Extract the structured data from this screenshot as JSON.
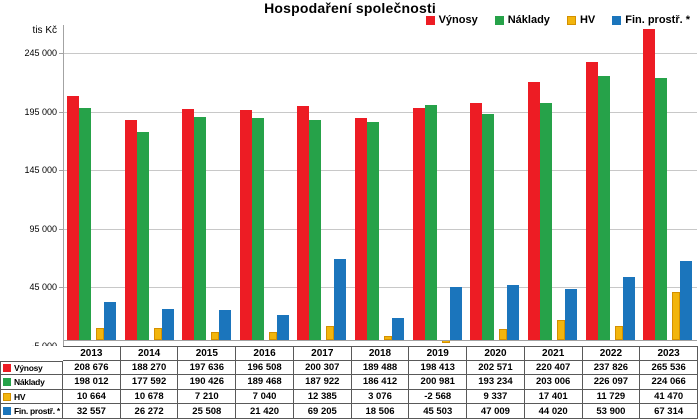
{
  "title": "Hospodaření společnosti",
  "y_axis": {
    "label": "tis Kč"
  },
  "colors": {
    "vynosy": "#ED1C24",
    "naklady": "#26A249",
    "hv_fill": "#F2B50D",
    "hv_border": "#D49000",
    "fin": "#1B75BC",
    "gridline": "#C8C8C8",
    "axis": "#A3A3A3",
    "table_border": "#595959"
  },
  "chart_data": {
    "type": "bar",
    "title": "Hospodaření společnosti",
    "ylabel": "tis Kč",
    "ylim": [
      -5000,
      269000
    ],
    "grid": true,
    "legend_position": "top-right",
    "y_ticks": [
      {
        "value": 245000,
        "label": "245 000"
      },
      {
        "value": 195000,
        "label": "195 000"
      },
      {
        "value": 145000,
        "label": "145 000"
      },
      {
        "value": 95000,
        "label": "95 000"
      },
      {
        "value": 45000,
        "label": "45 000"
      },
      {
        "value": -5000,
        "label": "-5 000"
      }
    ],
    "categories": [
      "2013",
      "2014",
      "2015",
      "2016",
      "2017",
      "2018",
      "2019",
      "2020",
      "2021",
      "2022",
      "2023"
    ],
    "series": [
      {
        "name": "Výnosy",
        "color": "#ED1C24",
        "border": null,
        "values": [
          208676,
          188270,
          197636,
          196508,
          200307,
          189488,
          198413,
          202571,
          220407,
          237826,
          265536
        ]
      },
      {
        "name": "Náklady",
        "color": "#26A249",
        "border": null,
        "values": [
          198012,
          177592,
          190426,
          189468,
          187922,
          186412,
          200981,
          193234,
          203006,
          226097,
          224066
        ]
      },
      {
        "name": "HV",
        "color": "#F2B50D",
        "border": "#D49000",
        "values": [
          10664,
          10678,
          7210,
          7040,
          12385,
          3076,
          -2568,
          9337,
          17401,
          11729,
          41470
        ]
      },
      {
        "name": "Fin. prostř. *",
        "color": "#1B75BC",
        "border": null,
        "values": [
          32557,
          26272,
          25508,
          21420,
          69205,
          18506,
          45503,
          47009,
          44020,
          53900,
          67314
        ]
      }
    ]
  },
  "table": {
    "header_years": [
      "2013",
      "2014",
      "2015",
      "2016",
      "2017",
      "2018",
      "2019",
      "2020",
      "2021",
      "2022",
      "2023"
    ],
    "rows": [
      {
        "label": "Výnosy",
        "marker_color": "#ED1C24",
        "marker_border": null,
        "values": [
          "208 676",
          "188 270",
          "197 636",
          "196 508",
          "200 307",
          "189 488",
          "198 413",
          "202 571",
          "220 407",
          "237 826",
          "265 536"
        ]
      },
      {
        "label": "Náklady",
        "marker_color": "#26A249",
        "marker_border": null,
        "values": [
          "198 012",
          "177 592",
          "190 426",
          "189 468",
          "187 922",
          "186 412",
          "200 981",
          "193 234",
          "203 006",
          "226 097",
          "224 066"
        ]
      },
      {
        "label": "HV",
        "marker_color": "#F2B50D",
        "marker_border": "#D49000",
        "values": [
          "10 664",
          "10 678",
          "7 210",
          "7 040",
          "12 385",
          "3 076",
          "-2 568",
          "9 337",
          "17 401",
          "11 729",
          "41 470"
        ]
      },
      {
        "label": "Fin. prostř. *",
        "marker_color": "#1B75BC",
        "marker_border": null,
        "values": [
          "32 557",
          "26 272",
          "25 508",
          "21 420",
          "69 205",
          "18 506",
          "45 503",
          "47 009",
          "44 020",
          "53 900",
          "67 314"
        ]
      }
    ]
  }
}
